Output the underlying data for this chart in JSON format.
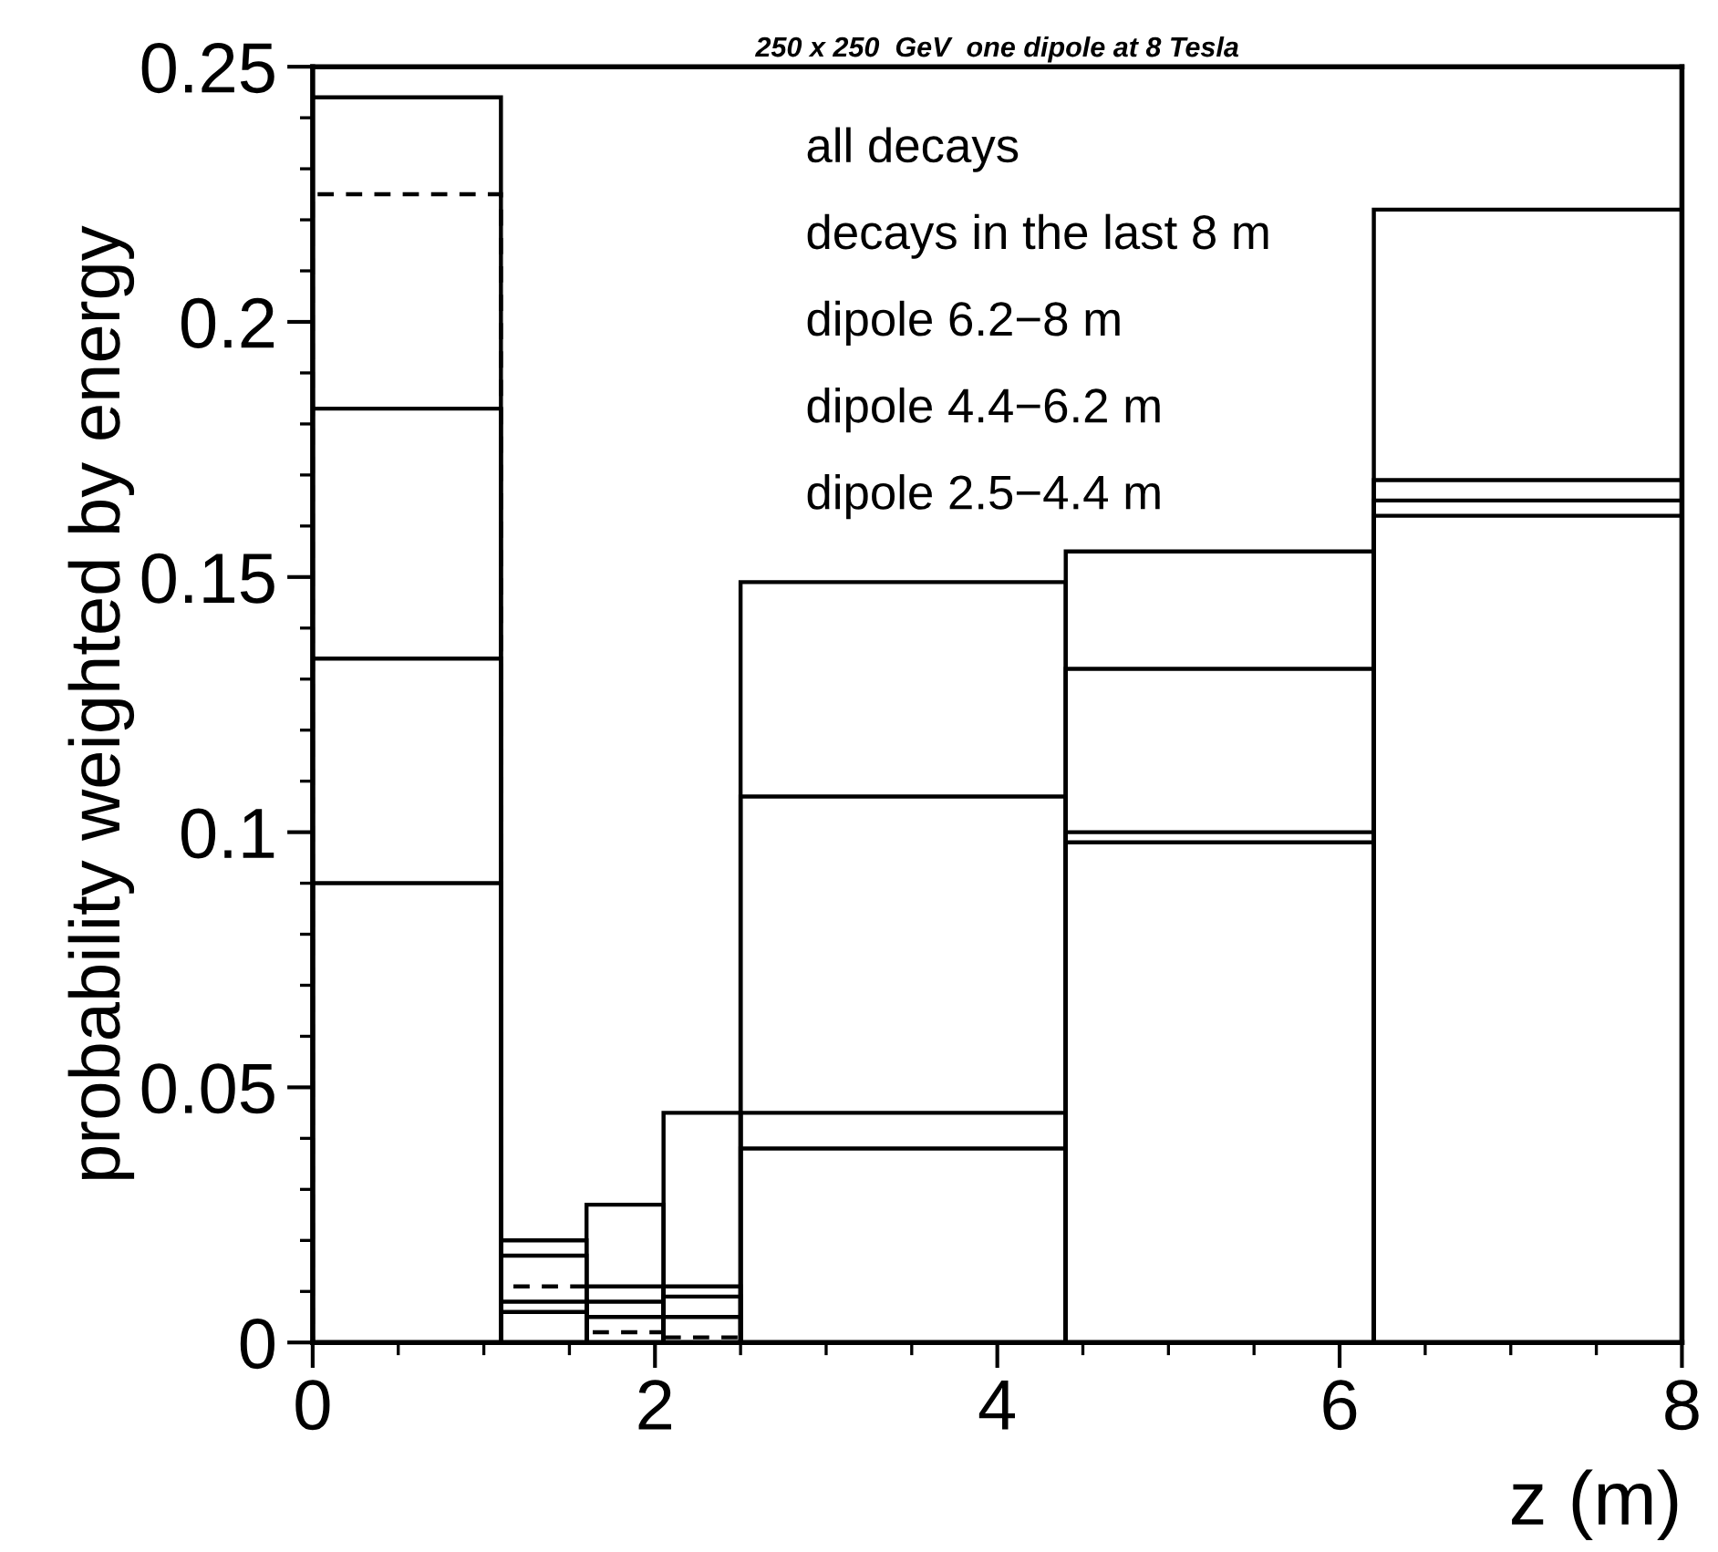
{
  "chart_data": {
    "type": "histogram",
    "title": "250 x 250  GeV  one dipole at 8 Tesla",
    "xlabel": "z (m)",
    "ylabel": "probability weighted by energy",
    "bins": [
      0,
      1.1,
      1.6,
      2.05,
      2.5,
      4.4,
      6.2,
      8
    ],
    "series": [
      {
        "color": "#000000",
        "line_style": "solid",
        "values": [
          0.244,
          0.02,
          0.027,
          0.045,
          0.149,
          0.155,
          0.222
        ]
      },
      {
        "color": "#000000",
        "line_style": "dashed",
        "values": [
          0.225,
          0.011,
          0.002,
          0.001,
          0,
          0,
          0
        ]
      },
      {
        "color": "#000000",
        "line_style": "solid",
        "values": [
          0.183,
          0.017,
          0.011,
          0.011,
          0.107,
          0.132,
          0.169
        ]
      },
      {
        "color": "#000000",
        "line_style": "solid",
        "values": [
          0.134,
          0.008,
          0.008,
          0.009,
          0.045,
          0.1,
          0.165
        ]
      },
      {
        "color": "#000000",
        "line_style": "solid",
        "values": [
          0.09,
          0.006,
          0.005,
          0.005,
          0.038,
          0.098,
          0.162
        ]
      }
    ],
    "annotations": [
      "all decays",
      "decays in the last 8 m",
      "dipole 6.2−8 m",
      "dipole 4.4−6.2 m",
      "dipole 2.5−4.4 m"
    ],
    "xlim": [
      0,
      8
    ],
    "xticks": [
      0,
      {
        "value": 0.5,
        "label": null
      },
      {
        "value": 1,
        "label": null
      },
      {
        "value": 1.5,
        "label": null
      },
      2,
      {
        "value": 2.5,
        "label": null
      },
      {
        "value": 3,
        "label": null
      },
      {
        "value": 3.5,
        "label": null
      },
      4,
      {
        "value": 4.5,
        "label": null
      },
      {
        "value": 5,
        "label": null
      },
      {
        "value": 5.5,
        "label": null
      },
      6,
      {
        "value": 6.5,
        "label": null
      },
      {
        "value": 7,
        "label": null
      },
      {
        "value": 7.5,
        "label": null
      },
      8
    ],
    "ylim": [
      0,
      0.25
    ],
    "yticks": [
      0,
      {
        "value": 0.01,
        "label": null
      },
      {
        "value": 0.02,
        "label": null
      },
      {
        "value": 0.03,
        "label": null
      },
      {
        "value": 0.04,
        "label": null
      },
      0.05,
      {
        "value": 0.06,
        "label": null
      },
      {
        "value": 0.07,
        "label": null
      },
      {
        "value": 0.08,
        "label": null
      },
      {
        "value": 0.09,
        "label": null
      },
      0.1,
      {
        "value": 0.11,
        "label": null
      },
      {
        "value": 0.12,
        "label": null
      },
      {
        "value": 0.13,
        "label": null
      },
      {
        "value": 0.14,
        "label": null
      },
      0.15,
      {
        "value": 0.16,
        "label": null
      },
      {
        "value": 0.17,
        "label": null
      },
      {
        "value": 0.18,
        "label": null
      },
      {
        "value": 0.19,
        "label": null
      },
      0.2,
      {
        "value": 0.21,
        "label": null
      },
      {
        "value": 0.22,
        "label": null
      },
      {
        "value": 0.23,
        "label": null
      },
      {
        "value": 0.24,
        "label": null
      },
      0.25
    ],
    "grid": false,
    "legend": false
  }
}
